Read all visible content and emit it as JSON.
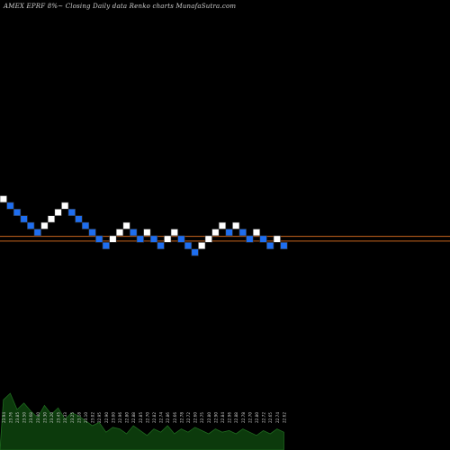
{
  "title": "AMEX  EPRF 8%~  Closing Daily data  Renko  charts MunafaSutra.com",
  "colors": {
    "background": "#000000",
    "up_brick": "#ffffff",
    "down_brick": "#1e6ef0",
    "brick_stroke": "#333333",
    "level_line": "#c8641e",
    "volume_fill": "#0c3a0c",
    "volume_stroke": "#1f6a1f",
    "label_color": "#cfcfcf"
  },
  "chart_data": {
    "type": "renko",
    "title": "AMEX  EPRF 8%~  Closing Daily data  Renko  charts MunafaSutra.com",
    "bricks": [
      {
        "dir": "up",
        "level": 0
      },
      {
        "dir": "down",
        "level": -1
      },
      {
        "dir": "down",
        "level": -2
      },
      {
        "dir": "down",
        "level": -3
      },
      {
        "dir": "down",
        "level": -4
      },
      {
        "dir": "down",
        "level": -5
      },
      {
        "dir": "up",
        "level": -4
      },
      {
        "dir": "up",
        "level": -3
      },
      {
        "dir": "up",
        "level": -2
      },
      {
        "dir": "up",
        "level": -1
      },
      {
        "dir": "down",
        "level": -2
      },
      {
        "dir": "down",
        "level": -3
      },
      {
        "dir": "down",
        "level": -4
      },
      {
        "dir": "down",
        "level": -5
      },
      {
        "dir": "down",
        "level": -6
      },
      {
        "dir": "down",
        "level": -7
      },
      {
        "dir": "up",
        "level": -6
      },
      {
        "dir": "up",
        "level": -5
      },
      {
        "dir": "up",
        "level": -4
      },
      {
        "dir": "down",
        "level": -5
      },
      {
        "dir": "down",
        "level": -6
      },
      {
        "dir": "up",
        "level": -5
      },
      {
        "dir": "down",
        "level": -6
      },
      {
        "dir": "down",
        "level": -7
      },
      {
        "dir": "up",
        "level": -6
      },
      {
        "dir": "up",
        "level": -5
      },
      {
        "dir": "down",
        "level": -6
      },
      {
        "dir": "down",
        "level": -7
      },
      {
        "dir": "down",
        "level": -8
      },
      {
        "dir": "up",
        "level": -7
      },
      {
        "dir": "up",
        "level": -6
      },
      {
        "dir": "up",
        "level": -5
      },
      {
        "dir": "up",
        "level": -4
      },
      {
        "dir": "down",
        "level": -5
      },
      {
        "dir": "up",
        "level": -4
      },
      {
        "dir": "down",
        "level": -5
      },
      {
        "dir": "down",
        "level": -6
      },
      {
        "dir": "up",
        "level": -5
      },
      {
        "dir": "down",
        "level": -6
      },
      {
        "dir": "down",
        "level": -7
      },
      {
        "dir": "up",
        "level": -6
      },
      {
        "dir": "down",
        "level": -7
      }
    ],
    "reference_lines": [
      -5.6,
      -6.3
    ],
    "volume": [
      62,
      70,
      50,
      58,
      48,
      40,
      55,
      44,
      52,
      38,
      46,
      42,
      36,
      30,
      34,
      22,
      28,
      26,
      20,
      30,
      24,
      18,
      26,
      22,
      30,
      20,
      26,
      22,
      28,
      24,
      20,
      26,
      22,
      24,
      20,
      26,
      22,
      18,
      24,
      20,
      26,
      22
    ],
    "volume_labels": [
      "23.94",
      "23.76",
      "23.85",
      "23.50",
      "23.68",
      "23.40",
      "23.30",
      "23.20",
      "23.45",
      "23.33",
      "23.25",
      "23.18",
      "23.10",
      "23.02",
      "22.95",
      "22.90",
      "23.00",
      "22.96",
      "22.80",
      "22.88",
      "22.85",
      "22.70",
      "22.82",
      "22.74",
      "22.86",
      "22.66",
      "22.78",
      "22.72",
      "22.60",
      "22.75",
      "22.80",
      "22.90",
      "22.84",
      "22.96",
      "22.88",
      "22.78",
      "22.70",
      "22.80",
      "22.72",
      "22.65",
      "22.74",
      "22.62"
    ]
  }
}
